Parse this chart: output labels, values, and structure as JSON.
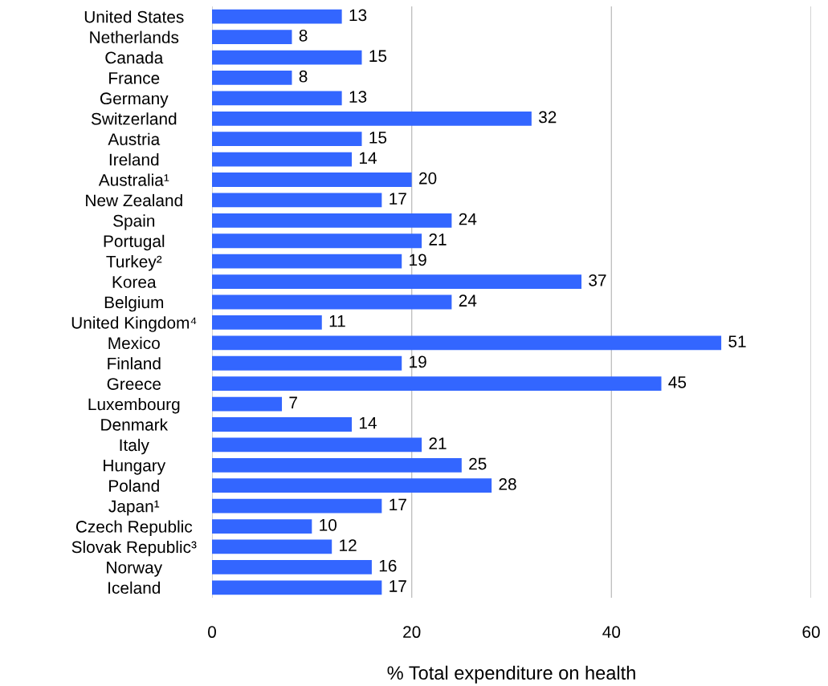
{
  "chart_data": {
    "type": "bar",
    "orientation": "horizontal",
    "xlabel": "% Total expenditure on health",
    "categories": [
      "United States",
      "Netherlands",
      "Canada",
      "France",
      "Germany",
      "Switzerland",
      "Austria",
      "Ireland",
      "Australia¹",
      "New Zealand",
      "Spain",
      "Portugal",
      "Turkey²",
      "Korea",
      "Belgium",
      "United Kingdom⁴",
      "Mexico",
      "Finland",
      "Greece",
      "Luxembourg",
      "Denmark",
      "Italy",
      "Hungary",
      "Poland",
      "Japan¹",
      "Czech Republic",
      "Slovak Republic³",
      "Norway",
      "Iceland"
    ],
    "values": [
      13,
      8,
      15,
      8,
      13,
      32,
      15,
      14,
      20,
      17,
      24,
      21,
      19,
      37,
      24,
      11,
      51,
      19,
      45,
      7,
      14,
      21,
      25,
      28,
      17,
      10,
      12,
      16,
      17
    ],
    "color": "#3366ff",
    "xlim": [
      0,
      60
    ],
    "xticks": [
      0,
      20,
      40,
      60
    ],
    "grid": "x",
    "data_labels": true,
    "legend": false
  }
}
